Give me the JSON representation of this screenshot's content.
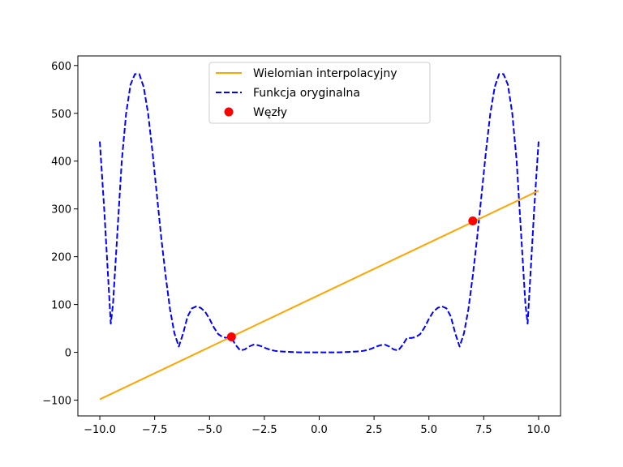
{
  "chart_data": {
    "type": "line",
    "xlim": [
      -11.0,
      11.0
    ],
    "ylim": [
      -133,
      620
    ],
    "x_ticks": [
      -10.0,
      -7.5,
      -5.0,
      -2.5,
      0.0,
      2.5,
      5.0,
      7.5,
      10.0
    ],
    "x_tick_labels": [
      "−10.0",
      "−7.5",
      "−5.0",
      "−2.5",
      "0.0",
      "2.5",
      "5.0",
      "7.5",
      "10.0"
    ],
    "y_ticks": [
      -100,
      0,
      100,
      200,
      300,
      400,
      500,
      600
    ],
    "y_tick_labels": [
      "−100",
      "0",
      "100",
      "200",
      "300",
      "400",
      "500",
      "600"
    ],
    "grid": false,
    "legend_position": "top-center",
    "series": [
      {
        "name": "Wielomian interpolacyjny",
        "kind": "line",
        "style": "solid",
        "color": "#ffa500",
        "x": [
          -10,
          10
        ],
        "y": [
          -98.2,
          338.2
        ]
      },
      {
        "name": "Funkcja oryginalna",
        "kind": "line",
        "style": "dashed",
        "color": "#0000ff",
        "x": [
          -10.0,
          -9.8,
          -9.6,
          -9.5,
          -9.4,
          -9.2,
          -9.0,
          -8.8,
          -8.6,
          -8.4,
          -8.2,
          -8.0,
          -7.8,
          -7.6,
          -7.4,
          -7.2,
          -7.0,
          -6.8,
          -6.6,
          -6.4,
          -6.2,
          -6.0,
          -5.8,
          -5.6,
          -5.4,
          -5.2,
          -5.0,
          -4.8,
          -4.6,
          -4.4,
          -4.2,
          -4.0,
          -3.8,
          -3.6,
          -3.4,
          -3.2,
          -3.0,
          -2.8,
          -2.6,
          -2.4,
          -2.2,
          -2.0,
          -1.8,
          -1.6,
          -1.4,
          -1.2,
          -1.0,
          -0.8,
          -0.6,
          -0.4,
          -0.2,
          0.0,
          0.2,
          0.4,
          0.6,
          0.8,
          1.0,
          1.2,
          1.4,
          1.6,
          1.8,
          2.0,
          2.2,
          2.4,
          2.6,
          2.8,
          3.0,
          3.2,
          3.4,
          3.6,
          3.8,
          4.0,
          4.2,
          4.4,
          4.6,
          4.8,
          5.0,
          5.2,
          5.4,
          5.6,
          5.8,
          6.0,
          6.2,
          6.4,
          6.6,
          6.8,
          7.0,
          7.2,
          7.4,
          7.6,
          7.8,
          8.0,
          8.2,
          8.4,
          8.6,
          8.8,
          9.0,
          9.2,
          9.4,
          9.5,
          9.6,
          9.8,
          10.0
        ],
        "y": [
          441,
          300,
          140,
          60,
          100,
          250,
          400,
          500,
          560,
          582,
          582,
          555,
          500,
          420,
          330,
          240,
          160,
          90,
          40,
          12,
          40,
          75,
          92,
          96,
          93,
          85,
          70,
          52,
          38,
          32,
          30,
          30,
          15,
          4,
          6,
          12,
          16,
          15,
          12,
          8,
          5,
          3,
          2,
          1.5,
          1,
          0.5,
          0.2,
          0,
          0,
          0,
          0,
          0,
          0,
          0,
          0,
          0,
          0.2,
          0.5,
          1,
          1.5,
          2,
          3,
          5,
          8,
          12,
          15,
          16,
          12,
          6,
          4,
          15,
          30,
          30,
          32,
          38,
          52,
          70,
          85,
          93,
          96,
          92,
          75,
          40,
          12,
          40,
          90,
          160,
          240,
          330,
          420,
          500,
          555,
          582,
          582,
          560,
          500,
          400,
          250,
          100,
          60,
          140,
          300,
          441
        ]
      },
      {
        "name": "Węzły",
        "kind": "scatter",
        "color": "#ff0000",
        "x": [
          -4,
          7
        ],
        "y": [
          32.4,
          274.8
        ]
      }
    ]
  }
}
